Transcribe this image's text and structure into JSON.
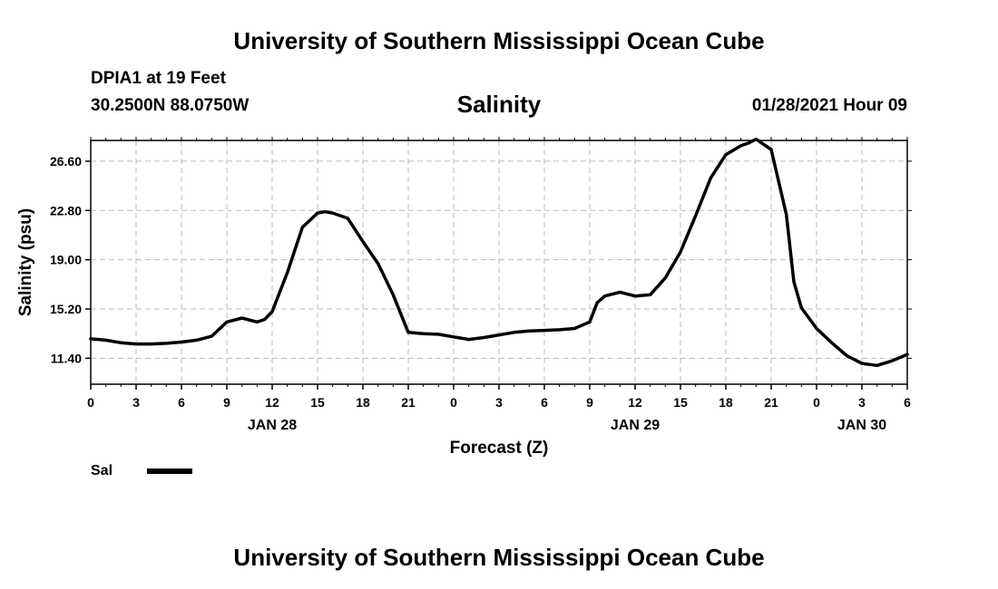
{
  "header": {
    "title_top": "University of Southern Mississippi Ocean Cube",
    "station": "DPIA1 at 19 Feet",
    "coords": "30.2500N 88.0750W",
    "issued": "01/28/2021 Hour 09"
  },
  "footer": {
    "title_bottom": "University of Southern Mississippi Ocean Cube"
  },
  "chart_data": {
    "type": "line",
    "title": "Salinity",
    "xlabel": "Forecast (Z)",
    "ylabel": "Salinity (psu)",
    "x_unit": "hours from 00Z JAN 28",
    "xlim": [
      0,
      54
    ],
    "ylim": [
      9.4,
      28.2
    ],
    "grid": true,
    "legend_position": "bottom-left",
    "x_ticks": [
      {
        "x": 0,
        "label": "0"
      },
      {
        "x": 3,
        "label": "3"
      },
      {
        "x": 6,
        "label": "6"
      },
      {
        "x": 9,
        "label": "9"
      },
      {
        "x": 12,
        "label": "12"
      },
      {
        "x": 15,
        "label": "15"
      },
      {
        "x": 18,
        "label": "18"
      },
      {
        "x": 21,
        "label": "21"
      },
      {
        "x": 24,
        "label": "0"
      },
      {
        "x": 27,
        "label": "3"
      },
      {
        "x": 30,
        "label": "6"
      },
      {
        "x": 33,
        "label": "9"
      },
      {
        "x": 36,
        "label": "12"
      },
      {
        "x": 39,
        "label": "15"
      },
      {
        "x": 42,
        "label": "18"
      },
      {
        "x": 45,
        "label": "21"
      },
      {
        "x": 48,
        "label": "0"
      },
      {
        "x": 51,
        "label": "3"
      },
      {
        "x": 54,
        "label": "6"
      }
    ],
    "date_labels": [
      {
        "x": 12,
        "label": "JAN 28"
      },
      {
        "x": 36,
        "label": "JAN 29"
      },
      {
        "x": 51,
        "label": "JAN 30"
      }
    ],
    "y_ticks": [
      {
        "y": 11.4,
        "label": "11.40"
      },
      {
        "y": 15.2,
        "label": "15.20"
      },
      {
        "y": 19.0,
        "label": "19.00"
      },
      {
        "y": 22.8,
        "label": "22.80"
      },
      {
        "y": 26.6,
        "label": "26.60"
      }
    ],
    "series": [
      {
        "name": "Sal",
        "color": "#000000",
        "x": [
          0,
          1,
          2,
          3,
          4,
          5,
          6,
          7,
          8,
          9,
          10,
          11,
          11.5,
          12,
          13,
          14,
          15,
          15.5,
          16,
          17,
          18,
          19,
          20,
          21,
          22,
          23,
          24,
          25,
          26,
          27,
          28,
          29,
          30,
          31,
          32,
          33,
          33.5,
          34,
          35,
          36,
          37,
          38,
          39,
          40,
          41,
          42,
          43,
          43.5,
          44,
          45,
          46,
          46.5,
          47,
          48,
          49,
          50,
          51,
          52,
          53,
          54
        ],
        "y": [
          12.9,
          12.8,
          12.6,
          12.5,
          12.5,
          12.55,
          12.65,
          12.8,
          13.1,
          14.2,
          14.5,
          14.2,
          14.4,
          15.0,
          18.0,
          21.5,
          22.6,
          22.7,
          22.6,
          22.2,
          20.4,
          18.7,
          16.3,
          13.4,
          13.3,
          13.25,
          13.05,
          12.85,
          13.0,
          13.2,
          13.4,
          13.5,
          13.55,
          13.6,
          13.7,
          14.2,
          15.7,
          16.2,
          16.5,
          16.2,
          16.3,
          17.6,
          19.6,
          22.4,
          25.3,
          27.1,
          27.8,
          28.0,
          28.3,
          27.5,
          22.5,
          17.3,
          15.3,
          13.7,
          12.6,
          11.6,
          11.0,
          10.85,
          11.2,
          11.7
        ]
      }
    ]
  }
}
